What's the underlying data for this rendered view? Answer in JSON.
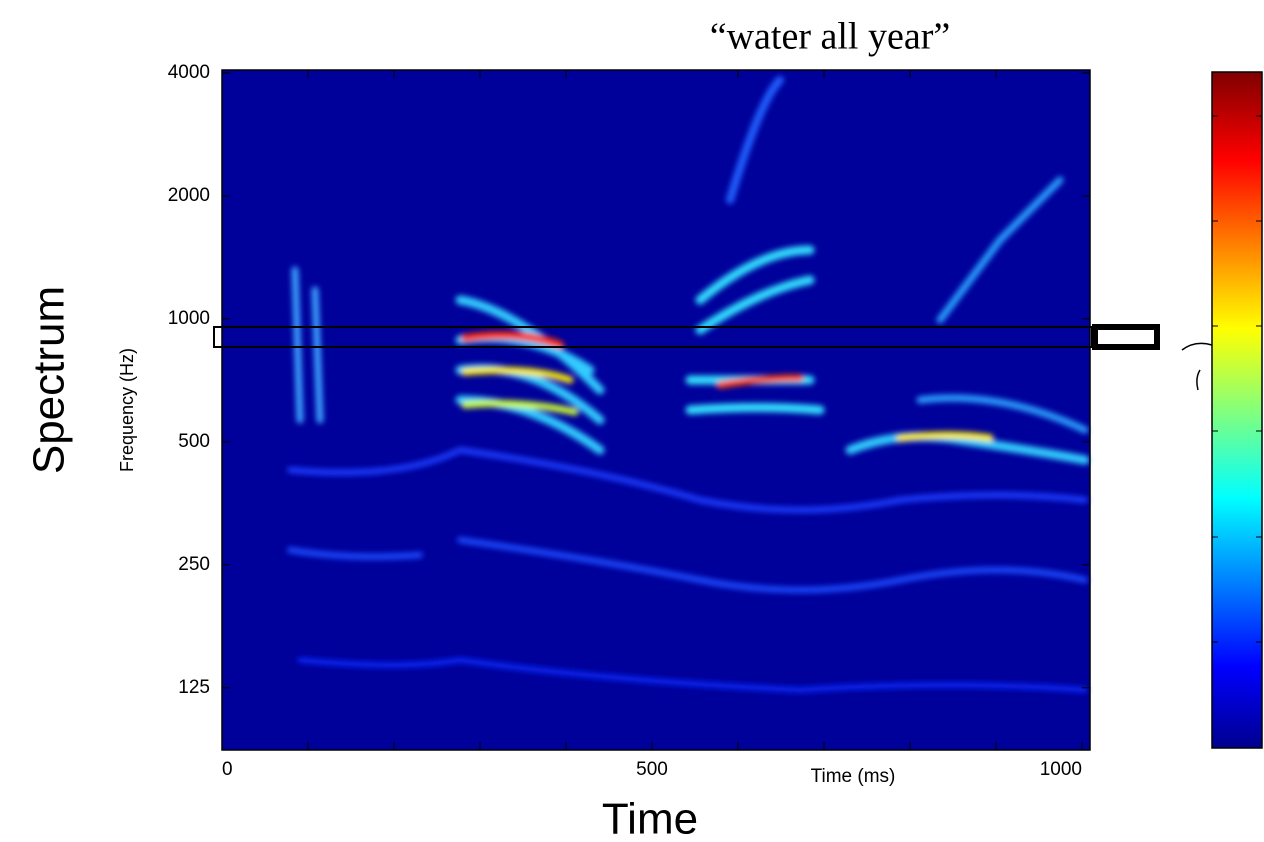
{
  "chart_data": {
    "type": "heatmap",
    "title": "“water all year”",
    "xlabel": "Time (ms)",
    "ylabel": "Frequency (Hz)",
    "outer_xlabel": "Time",
    "outer_ylabel": "Spectrum",
    "xlim": [
      0,
      1010
    ],
    "xticks": [
      0,
      500,
      1000
    ],
    "ylim": [
      88,
      4000
    ],
    "yticks": [
      125,
      250,
      500,
      1000,
      2000,
      4000
    ],
    "log_y": true
  }
}
